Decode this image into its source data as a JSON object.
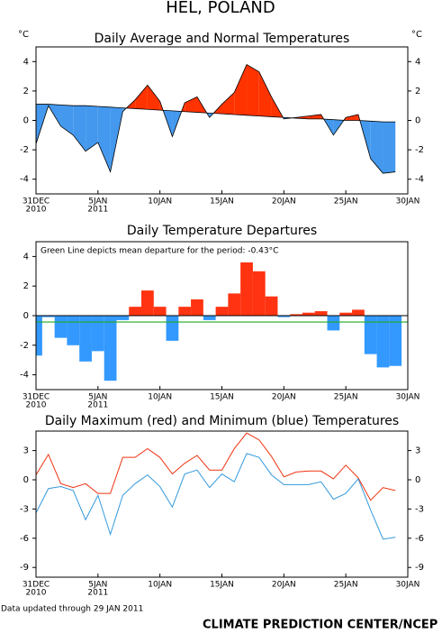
{
  "page": {
    "title": "HEL, POLAND",
    "updated": "Data updated through 29 JAN 2011",
    "credit": "CLIMATE PREDICTION CENTER/NCEP"
  },
  "chart_data": [
    {
      "type": "area",
      "title": "Daily Average and Normal Temperatures",
      "unit": "°C",
      "x": [
        "2010-12-31",
        "2011-01-01",
        "2011-01-02",
        "2011-01-03",
        "2011-01-04",
        "2011-01-05",
        "2011-01-06",
        "2011-01-07",
        "2011-01-08",
        "2011-01-09",
        "2011-01-10",
        "2011-01-11",
        "2011-01-12",
        "2011-01-13",
        "2011-01-14",
        "2011-01-15",
        "2011-01-16",
        "2011-01-17",
        "2011-01-18",
        "2011-01-19",
        "2011-01-20",
        "2011-01-21",
        "2011-01-22",
        "2011-01-23",
        "2011-01-24",
        "2011-01-25",
        "2011-01-26",
        "2011-01-27",
        "2011-01-28",
        "2011-01-29"
      ],
      "series": [
        {
          "color": "#000000",
          "values": [
            -1.6,
            1.0,
            -0.4,
            -1.0,
            -2.1,
            -1.5,
            -3.5,
            0.6,
            1.4,
            2.4,
            1.3,
            -1.1,
            1.2,
            1.6,
            0.2,
            1.1,
            1.9,
            3.8,
            3.3,
            1.6,
            0.1,
            0.2,
            0.3,
            0.4,
            -1.0,
            0.2,
            0.4,
            -2.6,
            -3.6,
            -3.5
          ]
        },
        {
          "color": "#000000",
          "values": [
            1.1,
            1.1,
            1.05,
            1.0,
            1.0,
            0.95,
            0.9,
            0.85,
            0.8,
            0.75,
            0.7,
            0.65,
            0.6,
            0.55,
            0.5,
            0.45,
            0.4,
            0.35,
            0.3,
            0.25,
            0.2,
            0.15,
            0.1,
            0.1,
            0.05,
            0.0,
            0.0,
            -0.05,
            -0.1,
            -0.1
          ]
        }
      ],
      "above_color": "#ff3300",
      "below_color": "#4499ee",
      "xlim": [
        "2010-12-31",
        "2011-01-30"
      ],
      "xticks": [
        {
          "value": "2010-12-31",
          "label": "31DEC"
        },
        {
          "value": "2011-01-05",
          "label": "5JAN"
        },
        {
          "value": "2011-01-10",
          "label": "10JAN"
        },
        {
          "value": "2011-01-15",
          "label": "15JAN"
        },
        {
          "value": "2011-01-20",
          "label": "20JAN"
        },
        {
          "value": "2011-01-25",
          "label": "25JAN"
        },
        {
          "value": "2011-01-30",
          "label": "30JAN"
        }
      ],
      "year_labels": [
        {
          "value": "2010-12-31",
          "label": "2010"
        },
        {
          "value": "2011-01-05",
          "label": "2011"
        }
      ],
      "ylim": [
        -5,
        5
      ],
      "yticks": [
        -4,
        -2,
        0,
        2,
        4
      ],
      "right_axis": true
    },
    {
      "type": "bar",
      "title": "Daily Temperature Departures",
      "annotation": "Green Line depicts mean departure for the period: -0.43°C",
      "x": [
        "2010-12-31",
        "2011-01-01",
        "2011-01-02",
        "2011-01-03",
        "2011-01-04",
        "2011-01-05",
        "2011-01-06",
        "2011-01-07",
        "2011-01-08",
        "2011-01-09",
        "2011-01-10",
        "2011-01-11",
        "2011-01-12",
        "2011-01-13",
        "2011-01-14",
        "2011-01-15",
        "2011-01-16",
        "2011-01-17",
        "2011-01-18",
        "2011-01-19",
        "2011-01-20",
        "2011-01-21",
        "2011-01-22",
        "2011-01-23",
        "2011-01-24",
        "2011-01-25",
        "2011-01-26",
        "2011-01-27",
        "2011-01-28",
        "2011-01-29"
      ],
      "values": [
        -2.7,
        -0.1,
        -1.5,
        -2.0,
        -3.1,
        -2.4,
        -4.4,
        -0.3,
        0.6,
        1.7,
        0.6,
        -1.7,
        0.6,
        1.1,
        -0.3,
        0.6,
        1.5,
        3.6,
        3.0,
        1.3,
        -0.1,
        0.1,
        0.2,
        0.3,
        -1.0,
        0.2,
        0.4,
        -2.6,
        -3.5,
        -3.4
      ],
      "positive_color": "#ff3311",
      "negative_color": "#3399ff",
      "mean_line": {
        "value": -0.43,
        "color": "#22aa22"
      },
      "xlim": [
        "2010-12-31",
        "2011-01-30"
      ],
      "xticks": [
        {
          "value": "2010-12-31",
          "label": "31DEC"
        },
        {
          "value": "2011-01-05",
          "label": "5JAN"
        },
        {
          "value": "2011-01-10",
          "label": "10JAN"
        },
        {
          "value": "2011-01-15",
          "label": "15JAN"
        },
        {
          "value": "2011-01-20",
          "label": "20JAN"
        },
        {
          "value": "2011-01-25",
          "label": "25JAN"
        },
        {
          "value": "2011-01-30",
          "label": "30JAN"
        }
      ],
      "year_labels": [
        {
          "value": "2010-12-31",
          "label": "2010"
        },
        {
          "value": "2011-01-05",
          "label": "2011"
        }
      ],
      "ylim": [
        -5,
        5
      ],
      "yticks": [
        -4,
        -2,
        0,
        2,
        4
      ],
      "right_axis": false
    },
    {
      "type": "line",
      "title": "Daily Maximum (red) and Minimum (blue) Temperatures",
      "x": [
        "2010-12-31",
        "2011-01-01",
        "2011-01-02",
        "2011-01-03",
        "2011-01-04",
        "2011-01-05",
        "2011-01-06",
        "2011-01-07",
        "2011-01-08",
        "2011-01-09",
        "2011-01-10",
        "2011-01-11",
        "2011-01-12",
        "2011-01-13",
        "2011-01-14",
        "2011-01-15",
        "2011-01-16",
        "2011-01-17",
        "2011-01-18",
        "2011-01-19",
        "2011-01-20",
        "2011-01-21",
        "2011-01-22",
        "2011-01-23",
        "2011-01-24",
        "2011-01-25",
        "2011-01-26",
        "2011-01-27",
        "2011-01-28",
        "2011-01-29"
      ],
      "series": [
        {
          "color": "#ee3311",
          "values": [
            0.5,
            2.6,
            -0.4,
            -0.8,
            -0.4,
            -1.4,
            -1.4,
            2.3,
            2.3,
            3.2,
            2.3,
            0.6,
            1.7,
            2.5,
            1.0,
            1.0,
            3.2,
            4.8,
            4.1,
            2.4,
            0.3,
            0.8,
            0.9,
            0.9,
            0.1,
            1.5,
            0.2,
            -2.1,
            -0.8,
            -1.1
          ]
        },
        {
          "color": "#3399dd",
          "values": [
            -3.4,
            -0.9,
            -0.7,
            -1.1,
            -4.1,
            -1.6,
            -5.6,
            -1.6,
            -0.4,
            0.5,
            -0.7,
            -2.8,
            0.6,
            1.0,
            -0.8,
            0.6,
            -0.2,
            2.7,
            2.3,
            0.5,
            -0.5,
            -0.5,
            -0.5,
            -0.2,
            -2.0,
            -1.4,
            0.1,
            -3.1,
            -6.1,
            -5.9
          ]
        }
      ],
      "xlim": [
        "2010-12-31",
        "2011-01-30"
      ],
      "xticks": [
        {
          "value": "2010-12-31",
          "label": "31DEC"
        },
        {
          "value": "2011-01-05",
          "label": "5JAN"
        },
        {
          "value": "2011-01-10",
          "label": "10JAN"
        },
        {
          "value": "2011-01-15",
          "label": "15JAN"
        },
        {
          "value": "2011-01-20",
          "label": "20JAN"
        },
        {
          "value": "2011-01-25",
          "label": "25JAN"
        },
        {
          "value": "2011-01-30",
          "label": "30JAN"
        }
      ],
      "year_labels": [
        {
          "value": "2010-12-31",
          "label": "2010"
        },
        {
          "value": "2011-01-05",
          "label": "2011"
        }
      ],
      "ylim": [
        -10,
        5
      ],
      "yticks": [
        -9,
        -6,
        -3,
        0,
        3
      ],
      "right_axis": true
    }
  ]
}
